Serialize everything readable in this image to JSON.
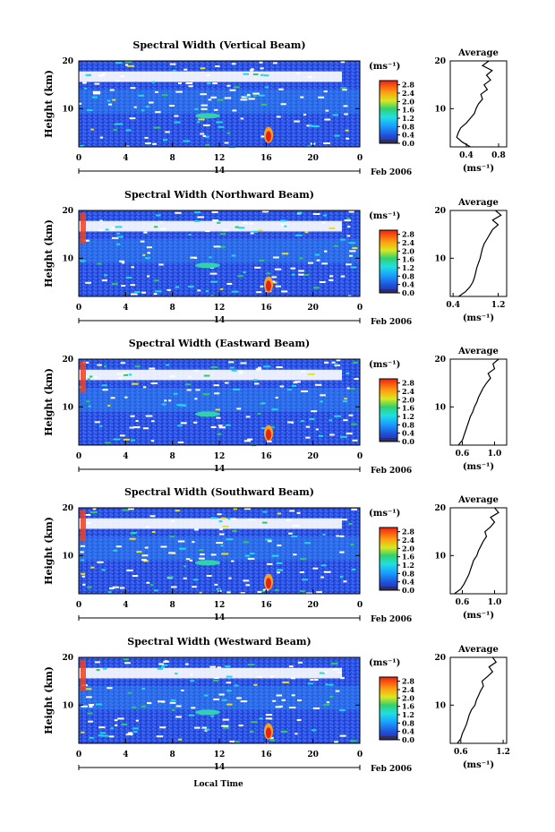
{
  "figure": {
    "xlabel_bottom": "Local Time",
    "colorbar_unit": "(ms⁻¹)",
    "average_title": "Average",
    "average_xlabel": "(ms⁻¹)"
  },
  "chart_data": [
    {
      "type": "heatmap",
      "title": "Spectral Width (Vertical Beam)",
      "ylabel": "Height (km)",
      "x_ticks": [
        "0",
        "4",
        "8",
        "12",
        "16",
        "20",
        "0"
      ],
      "date_day": "14",
      "date_month": "Feb 2006",
      "xlim": [
        0,
        24
      ],
      "ylim": [
        2,
        20
      ],
      "y_ticks": [
        "10",
        "20"
      ],
      "colorbar": {
        "ticks": [
          "0.0",
          "0.4",
          "0.8",
          "1.2",
          "1.6",
          "2.0",
          "2.4",
          "2.8"
        ],
        "range": [
          0,
          3.0
        ]
      },
      "average": {
        "xlim": [
          0.2,
          0.9
        ],
        "x_ticks": [
          "0.4",
          "0.8"
        ],
        "height": [
          2,
          3,
          4,
          5,
          6,
          7,
          8,
          9,
          10,
          11,
          12,
          13,
          14,
          15,
          16,
          17,
          18,
          19,
          20
        ],
        "value": [
          0.45,
          0.35,
          0.28,
          0.3,
          0.33,
          0.4,
          0.45,
          0.5,
          0.52,
          0.55,
          0.6,
          0.58,
          0.66,
          0.62,
          0.7,
          0.65,
          0.72,
          0.6,
          0.68
        ]
      }
    },
    {
      "type": "heatmap",
      "title": "Spectral Width (Northward Beam)",
      "ylabel": "Height (km)",
      "x_ticks": [
        "0",
        "4",
        "8",
        "12",
        "16",
        "20",
        "0"
      ],
      "date_day": "14",
      "date_month": "Feb 2006",
      "xlim": [
        0,
        24
      ],
      "ylim": [
        2,
        20
      ],
      "y_ticks": [
        "10",
        "20"
      ],
      "colorbar": {
        "ticks": [
          "0.0",
          "0.4",
          "0.8",
          "1.2",
          "1.6",
          "2.0",
          "2.4",
          "2.8"
        ],
        "range": [
          0,
          3.0
        ]
      },
      "average": {
        "xlim": [
          0.35,
          1.35
        ],
        "x_ticks": [
          "0.4",
          "1.2"
        ],
        "height": [
          2,
          3,
          4,
          5,
          6,
          7,
          8,
          9,
          10,
          11,
          12,
          13,
          14,
          15,
          16,
          17,
          18,
          19,
          20
        ],
        "value": [
          0.5,
          0.62,
          0.7,
          0.75,
          0.78,
          0.8,
          0.82,
          0.85,
          0.88,
          0.9,
          0.92,
          0.95,
          1.0,
          1.05,
          1.1,
          1.2,
          1.1,
          1.25,
          1.15
        ]
      }
    },
    {
      "type": "heatmap",
      "title": "Spectral Width (Eastward Beam)",
      "ylabel": "Height (km)",
      "x_ticks": [
        "0",
        "4",
        "8",
        "12",
        "16",
        "20",
        "0"
      ],
      "date_day": "14",
      "date_month": "Feb 2006",
      "xlim": [
        0,
        24
      ],
      "ylim": [
        2,
        20
      ],
      "y_ticks": [
        "10",
        "20"
      ],
      "colorbar": {
        "ticks": [
          "0.0",
          "0.4",
          "0.8",
          "1.2",
          "1.6",
          "2.0",
          "2.4",
          "2.8"
        ],
        "range": [
          0,
          3.0
        ]
      },
      "average": {
        "xlim": [
          0.45,
          1.15
        ],
        "x_ticks": [
          "0.6",
          "1.0"
        ],
        "height": [
          2,
          3,
          4,
          5,
          6,
          7,
          8,
          9,
          10,
          11,
          12,
          13,
          14,
          15,
          16,
          17,
          18,
          19,
          20
        ],
        "value": [
          0.55,
          0.6,
          0.62,
          0.64,
          0.66,
          0.68,
          0.7,
          0.73,
          0.75,
          0.78,
          0.8,
          0.83,
          0.86,
          0.9,
          0.95,
          0.92,
          1.0,
          0.98,
          1.05
        ]
      }
    },
    {
      "type": "heatmap",
      "title": "Spectral Width (Southward Beam)",
      "ylabel": "Height (km)",
      "x_ticks": [
        "0",
        "4",
        "8",
        "12",
        "16",
        "20",
        "0"
      ],
      "date_day": "14",
      "date_month": "Feb 2006",
      "xlim": [
        0,
        24
      ],
      "ylim": [
        2,
        20
      ],
      "y_ticks": [
        "10",
        "20"
      ],
      "colorbar": {
        "ticks": [
          "0.0",
          "0.4",
          "0.8",
          "1.2",
          "1.6",
          "2.0",
          "2.4",
          "2.8"
        ],
        "range": [
          0,
          3.0
        ]
      },
      "average": {
        "xlim": [
          0.45,
          1.15
        ],
        "x_ticks": [
          "0.6",
          "1.0"
        ],
        "height": [
          2,
          3,
          4,
          5,
          6,
          7,
          8,
          9,
          10,
          11,
          12,
          13,
          14,
          15,
          16,
          17,
          18,
          19,
          20
        ],
        "value": [
          0.5,
          0.58,
          0.62,
          0.65,
          0.68,
          0.7,
          0.72,
          0.74,
          0.78,
          0.8,
          0.83,
          0.86,
          0.9,
          0.88,
          0.95,
          1.0,
          0.95,
          1.05,
          1.0
        ]
      }
    },
    {
      "type": "heatmap",
      "title": "Spectral Width (Westward Beam)",
      "ylabel": "Height (km)",
      "x_ticks": [
        "0",
        "4",
        "8",
        "12",
        "16",
        "20",
        "0"
      ],
      "date_day": "14",
      "date_month": "Feb 2006",
      "xlim": [
        0,
        24
      ],
      "ylim": [
        2,
        20
      ],
      "y_ticks": [
        "10",
        "20"
      ],
      "colorbar": {
        "ticks": [
          "0.0",
          "0.4",
          "0.8",
          "1.2",
          "1.6",
          "2.0",
          "2.4",
          "2.8"
        ],
        "range": [
          0,
          3.0
        ]
      },
      "average": {
        "xlim": [
          0.45,
          1.25
        ],
        "x_ticks": [
          "0.6",
          "1.2"
        ],
        "height": [
          2,
          3,
          4,
          5,
          6,
          7,
          8,
          9,
          10,
          11,
          12,
          13,
          14,
          15,
          16,
          17,
          18,
          19,
          20
        ],
        "value": [
          0.55,
          0.6,
          0.62,
          0.65,
          0.68,
          0.7,
          0.72,
          0.75,
          0.8,
          0.82,
          0.85,
          0.88,
          0.92,
          0.9,
          0.98,
          1.05,
          1.0,
          1.1,
          1.05
        ]
      }
    }
  ]
}
